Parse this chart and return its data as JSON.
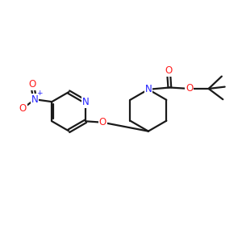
{
  "background_color": "#ffffff",
  "bond_color": "#1a1a1a",
  "atom_colors": {
    "N": "#2020ff",
    "O": "#ff2020",
    "C": "#1a1a1a"
  },
  "figsize": [
    3.0,
    3.0
  ],
  "dpi": 100
}
